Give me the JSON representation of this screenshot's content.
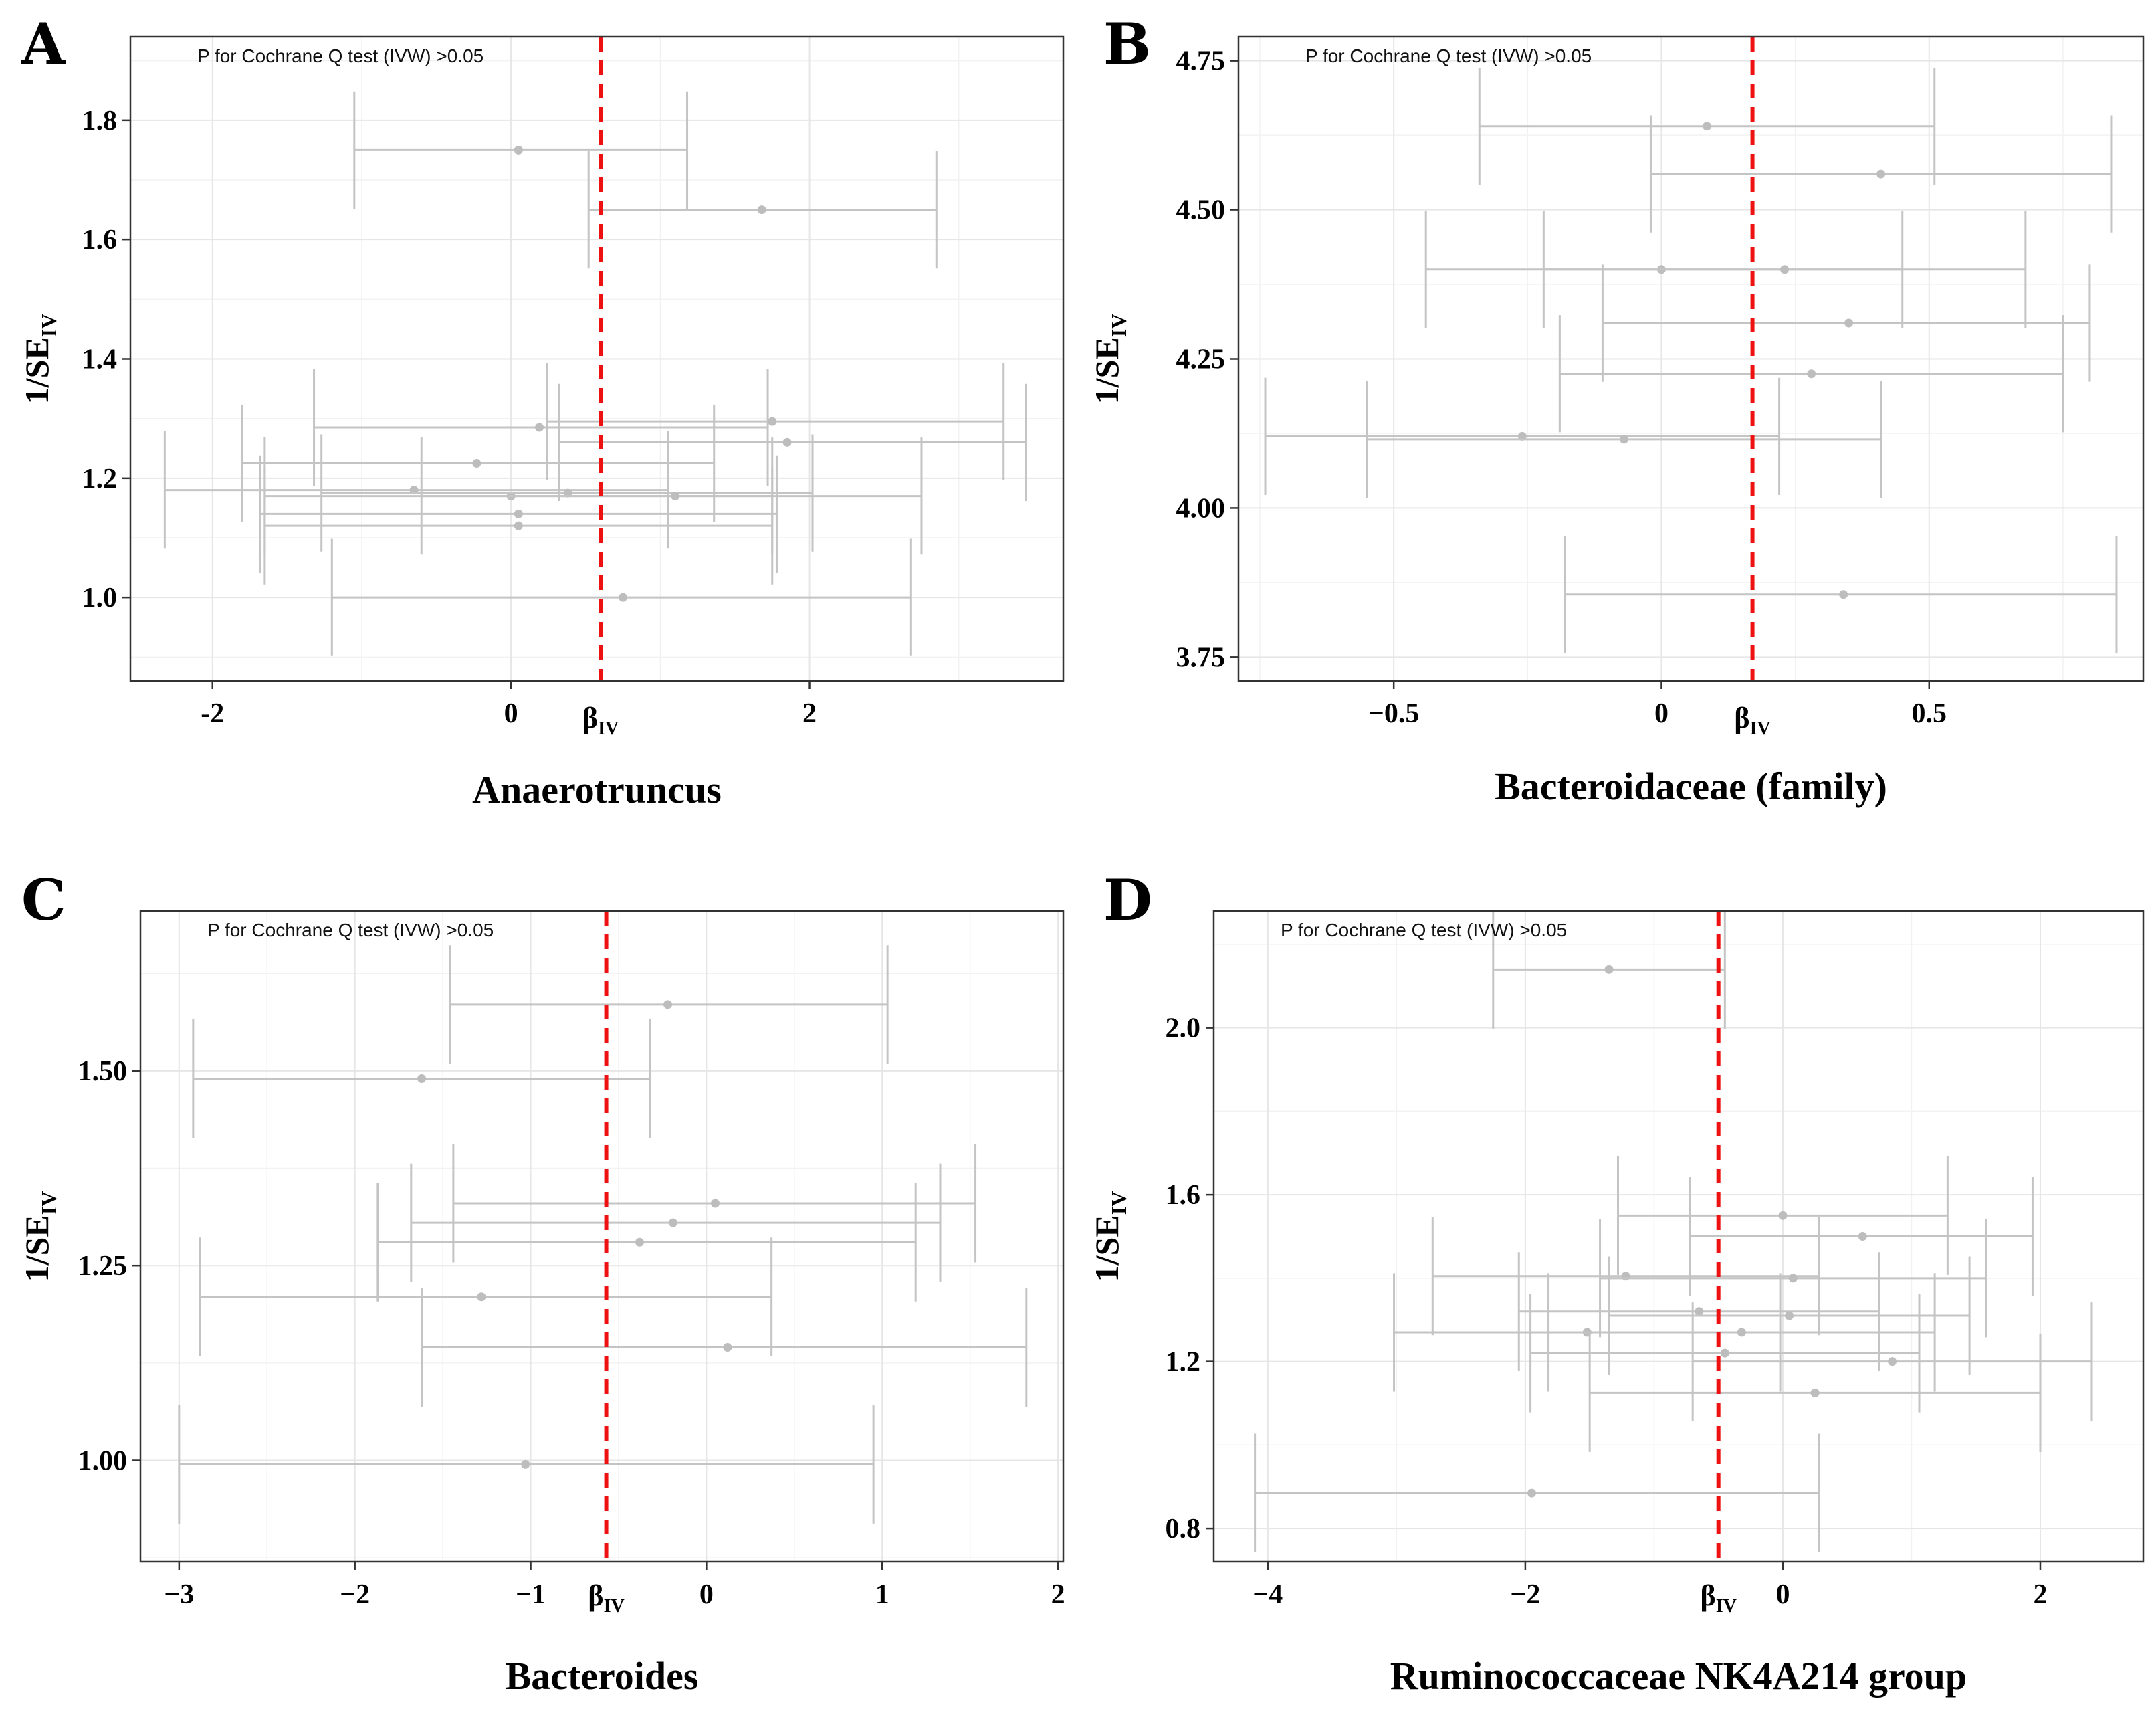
{
  "figure": {
    "annotation": "P for Cochrane Q test (IVW) >0.05",
    "ylabel_main": "1/SE",
    "ylabel_sub": "IV",
    "beta_main": "β",
    "beta_sub": "IV",
    "colors": {
      "ivw_line": "#ee1111",
      "points": "#bdbdbd",
      "error_bars": "#c4c4c4"
    }
  },
  "chart_data": [
    {
      "panel": "A",
      "type": "scatter",
      "xlabel": "Anaerotruncus",
      "ivw_beta": 0.6,
      "xlim": [
        -2.55,
        3.7
      ],
      "ylim": [
        0.86,
        1.94
      ],
      "xticks": [
        -2,
        0,
        2
      ],
      "yticks": [
        1.0,
        1.2,
        1.4,
        1.6,
        1.8
      ],
      "ytick_labels": [
        "1.0",
        "1.2",
        "1.4",
        "1.6",
        "1.8"
      ],
      "points": [
        {
          "x": 0.05,
          "y": 1.75,
          "lo": -1.05,
          "hi": 1.18
        },
        {
          "x": 1.68,
          "y": 1.65,
          "lo": 0.52,
          "hi": 2.85
        },
        {
          "x": 0.19,
          "y": 1.285,
          "lo": -1.32,
          "hi": 1.72
        },
        {
          "x": 1.75,
          "y": 1.295,
          "lo": 0.24,
          "hi": 3.3
        },
        {
          "x": 1.85,
          "y": 1.26,
          "lo": 0.32,
          "hi": 3.45
        },
        {
          "x": -0.23,
          "y": 1.225,
          "lo": -1.8,
          "hi": 1.36
        },
        {
          "x": -0.65,
          "y": 1.18,
          "lo": -2.32,
          "hi": 1.05
        },
        {
          "x": 0.0,
          "y": 1.17,
          "lo": -1.65,
          "hi": 1.75
        },
        {
          "x": 0.38,
          "y": 1.175,
          "lo": -1.27,
          "hi": 2.02
        },
        {
          "x": 1.1,
          "y": 1.17,
          "lo": -0.6,
          "hi": 2.75
        },
        {
          "x": 0.05,
          "y": 1.14,
          "lo": -1.68,
          "hi": 1.78
        },
        {
          "x": 0.05,
          "y": 1.12,
          "lo": -1.65,
          "hi": 1.75
        },
        {
          "x": 0.75,
          "y": 1.0,
          "lo": -1.2,
          "hi": 2.68
        }
      ]
    },
    {
      "panel": "B",
      "type": "scatter",
      "xlabel": "Bacteroidaceae (family)",
      "ivw_beta": 0.17,
      "xlim": [
        -0.79,
        0.9
      ],
      "ylim": [
        3.71,
        4.79
      ],
      "xticks": [
        -0.5,
        0,
        0.5
      ],
      "xtick_labels": [
        "−0.5",
        "0",
        "0.5"
      ],
      "yticks": [
        3.75,
        4.0,
        4.25,
        4.5,
        4.75
      ],
      "ytick_labels": [
        "3.75",
        "4.00",
        "4.25",
        "4.50",
        "4.75"
      ],
      "points": [
        {
          "x": 0.085,
          "y": 4.64,
          "lo": -0.34,
          "hi": 0.51
        },
        {
          "x": 0.41,
          "y": 4.56,
          "lo": -0.02,
          "hi": 0.84
        },
        {
          "x": 0.0,
          "y": 4.4,
          "lo": -0.44,
          "hi": 0.45
        },
        {
          "x": 0.23,
          "y": 4.4,
          "lo": -0.22,
          "hi": 0.68
        },
        {
          "x": 0.35,
          "y": 4.31,
          "lo": -0.11,
          "hi": 0.8
        },
        {
          "x": 0.28,
          "y": 4.225,
          "lo": -0.19,
          "hi": 0.75
        },
        {
          "x": -0.26,
          "y": 4.12,
          "lo": -0.74,
          "hi": 0.22
        },
        {
          "x": -0.07,
          "y": 4.115,
          "lo": -0.55,
          "hi": 0.41
        },
        {
          "x": 0.34,
          "y": 3.855,
          "lo": -0.18,
          "hi": 0.85
        }
      ]
    },
    {
      "panel": "C",
      "type": "scatter",
      "xlabel": "Bacteroides",
      "ivw_beta": -0.57,
      "xlim": [
        -3.22,
        2.03
      ],
      "ylim": [
        0.87,
        1.705
      ],
      "xticks": [
        -3,
        -2,
        -1,
        0,
        1,
        2
      ],
      "xtick_labels": [
        "−3",
        "−2",
        "−1",
        "0",
        "1",
        "2"
      ],
      "yticks": [
        1.0,
        1.25,
        1.5
      ],
      "ytick_labels": [
        "1.00",
        "1.25",
        "1.50"
      ],
      "points": [
        {
          "x": -0.22,
          "y": 1.585,
          "lo": -1.46,
          "hi": 1.03
        },
        {
          "x": -1.62,
          "y": 1.49,
          "lo": -2.92,
          "hi": -0.32
        },
        {
          "x": 0.05,
          "y": 1.33,
          "lo": -1.44,
          "hi": 1.53
        },
        {
          "x": -0.19,
          "y": 1.305,
          "lo": -1.68,
          "hi": 1.33
        },
        {
          "x": -0.38,
          "y": 1.28,
          "lo": -1.87,
          "hi": 1.19
        },
        {
          "x": -1.28,
          "y": 1.21,
          "lo": -2.88,
          "hi": 0.37
        },
        {
          "x": 0.12,
          "y": 1.145,
          "lo": -1.62,
          "hi": 1.82
        },
        {
          "x": -1.03,
          "y": 0.995,
          "lo": -3.0,
          "hi": 0.95
        }
      ]
    },
    {
      "panel": "D",
      "type": "scatter",
      "xlabel": "Ruminococcaceae NK4A214 group",
      "ivw_beta": -0.5,
      "xlim": [
        -4.42,
        2.8
      ],
      "ylim": [
        0.72,
        2.28
      ],
      "xticks": [
        -4,
        -2,
        0,
        2
      ],
      "xtick_labels": [
        "−4",
        "−2",
        "0",
        "2"
      ],
      "yticks": [
        0.8,
        1.2,
        1.6,
        2.0
      ],
      "ytick_labels": [
        "0.8",
        "1.2",
        "1.6",
        "2.0"
      ],
      "points": [
        {
          "x": -1.35,
          "y": 2.14,
          "lo": -2.25,
          "hi": -0.45
        },
        {
          "x": 0.0,
          "y": 1.55,
          "lo": -1.28,
          "hi": 1.28
        },
        {
          "x": 0.62,
          "y": 1.5,
          "lo": -0.72,
          "hi": 1.94
        },
        {
          "x": -1.22,
          "y": 1.405,
          "lo": -2.72,
          "hi": 0.28
        },
        {
          "x": 0.08,
          "y": 1.4,
          "lo": -1.42,
          "hi": 1.58
        },
        {
          "x": -0.65,
          "y": 1.32,
          "lo": -2.05,
          "hi": 0.75
        },
        {
          "x": 0.05,
          "y": 1.31,
          "lo": -1.35,
          "hi": 1.45
        },
        {
          "x": -1.52,
          "y": 1.27,
          "lo": -3.02,
          "hi": -0.02
        },
        {
          "x": -0.32,
          "y": 1.27,
          "lo": -1.82,
          "hi": 1.18
        },
        {
          "x": -0.45,
          "y": 1.22,
          "lo": -1.96,
          "hi": 1.06
        },
        {
          "x": 0.85,
          "y": 1.2,
          "lo": -0.7,
          "hi": 2.4
        },
        {
          "x": 0.25,
          "y": 1.125,
          "lo": -1.5,
          "hi": 2.0
        },
        {
          "x": -1.95,
          "y": 0.885,
          "lo": -4.1,
          "hi": 0.28
        }
      ]
    }
  ]
}
